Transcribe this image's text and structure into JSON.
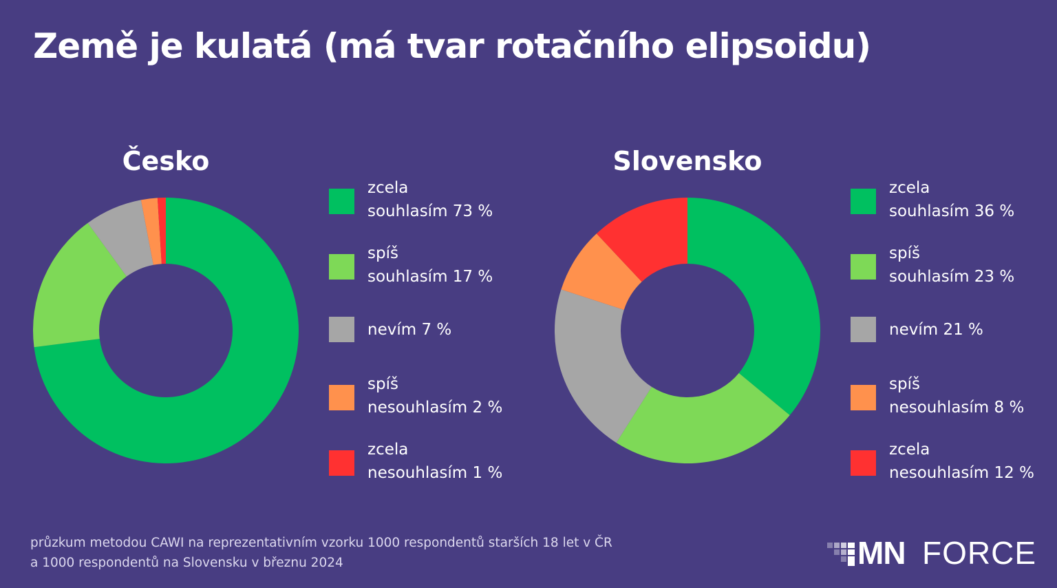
{
  "title": "Země je kulatá (má tvar rotačního elipsoidu)",
  "chart_data": [
    {
      "type": "pie",
      "title": "Česko",
      "series": [
        {
          "label": "zcela souhlasím",
          "display": [
            "zcela",
            "souhlasím 73 %"
          ],
          "value": 73,
          "color": "#00c060"
        },
        {
          "label": "spíš souhlasím",
          "display": [
            "spíš",
            "souhlasím 17 %"
          ],
          "value": 17,
          "color": "#7ed957"
        },
        {
          "label": "nevím",
          "display": [
            "nevím 7 %"
          ],
          "value": 7,
          "color": "#a6a6a6"
        },
        {
          "label": "spíš nesouhlasím",
          "display": [
            "spíš",
            "nesouhlasím 2 %"
          ],
          "value": 2,
          "color": "#ff914d"
        },
        {
          "label": "zcela nesouhlasím",
          "display": [
            "zcela",
            "nesouhlasím 1 %"
          ],
          "value": 1,
          "color": "#ff3131"
        }
      ]
    },
    {
      "type": "pie",
      "title": "Slovensko",
      "series": [
        {
          "label": "zcela souhlasím",
          "display": [
            "zcela",
            "souhlasím 36 %"
          ],
          "value": 36,
          "color": "#00c060"
        },
        {
          "label": "spíš souhlasím",
          "display": [
            "spíš",
            "souhlasím 23 %"
          ],
          "value": 23,
          "color": "#7ed957"
        },
        {
          "label": "nevím",
          "display": [
            "nevím 21 %"
          ],
          "value": 21,
          "color": "#a6a6a6"
        },
        {
          "label": "spíš nesouhlasím",
          "display": [
            "spíš",
            "nesouhlasím 8 %"
          ],
          "value": 8,
          "color": "#ff914d"
        },
        {
          "label": "zcela nesouhlasím",
          "display": [
            "zcela",
            "nesouhlasím 12 %"
          ],
          "value": 12,
          "color": "#ff3131"
        }
      ]
    }
  ],
  "footnote": {
    "line1": "průzkum metodou CAWI na reprezentativním vzorku 1000 respondentů starších 18 let v ČR",
    "line2": "a 1000 respondentů na Slovensku v březnu 2024"
  },
  "logo": {
    "part1": "MN",
    "part2": "FORCE"
  },
  "colors": {
    "background": "#483d82",
    "text": "#ffffff"
  }
}
